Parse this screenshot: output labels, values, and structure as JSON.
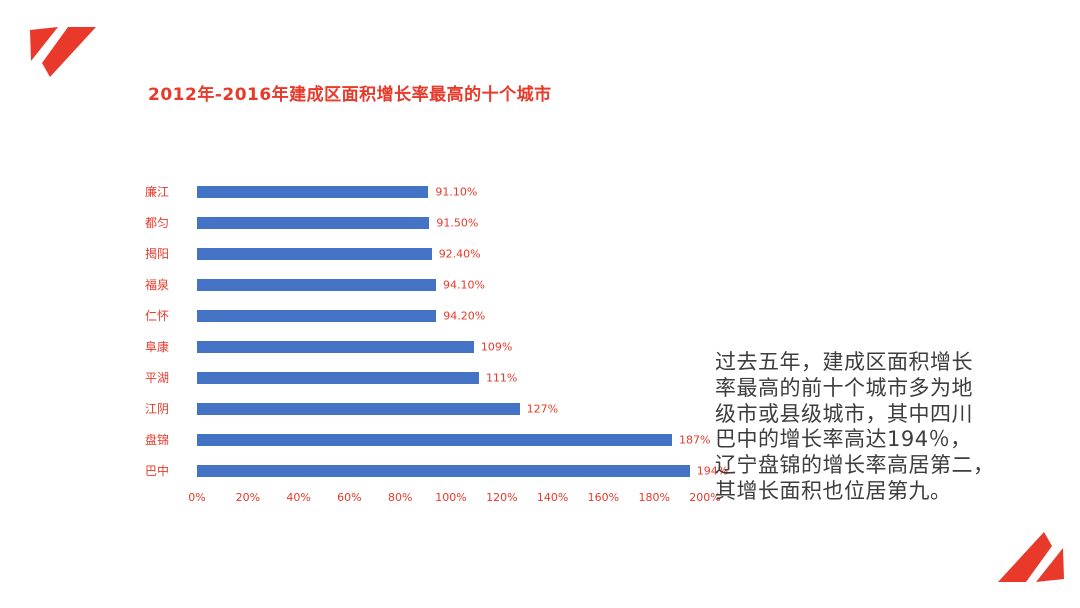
{
  "title": "2012年-2016年建成区面积增长率最高的十个城市",
  "chart_data": {
    "type": "bar",
    "orientation": "horizontal",
    "categories": [
      "廉江",
      "都匀",
      "揭阳",
      "福泉",
      "仁怀",
      "阜康",
      "平湖",
      "江阴",
      "盘锦",
      "巴中"
    ],
    "values": [
      91.1,
      91.5,
      92.4,
      94.1,
      94.2,
      109,
      111,
      127,
      187,
      194
    ],
    "value_labels": [
      "91.10%",
      "91.50%",
      "92.40%",
      "94.10%",
      "94.20%",
      "109%",
      "111%",
      "127%",
      "187%",
      "194%"
    ],
    "x_ticks": [
      "0%",
      "20%",
      "40%",
      "60%",
      "80%",
      "100%",
      "120%",
      "140%",
      "160%",
      "180%",
      "200%"
    ],
    "xlim": [
      0,
      200
    ],
    "xlabel": "",
    "ylabel": "",
    "grid": false,
    "legend": "none"
  },
  "annotation": {
    "text": "过去五年，建成区面积增长\n率最高的前十个城市多为地\n级市或县级城市，其中四川\n巴中的增长率高达194％，\n辽宁盘锦的增长率高居第二，\n其增长面积也位居第九。"
  },
  "colors": {
    "accent_red": "#e8392a",
    "bar_blue": "#4472c4",
    "body_text": "#3d3d3d",
    "background": "#ffffff"
  }
}
